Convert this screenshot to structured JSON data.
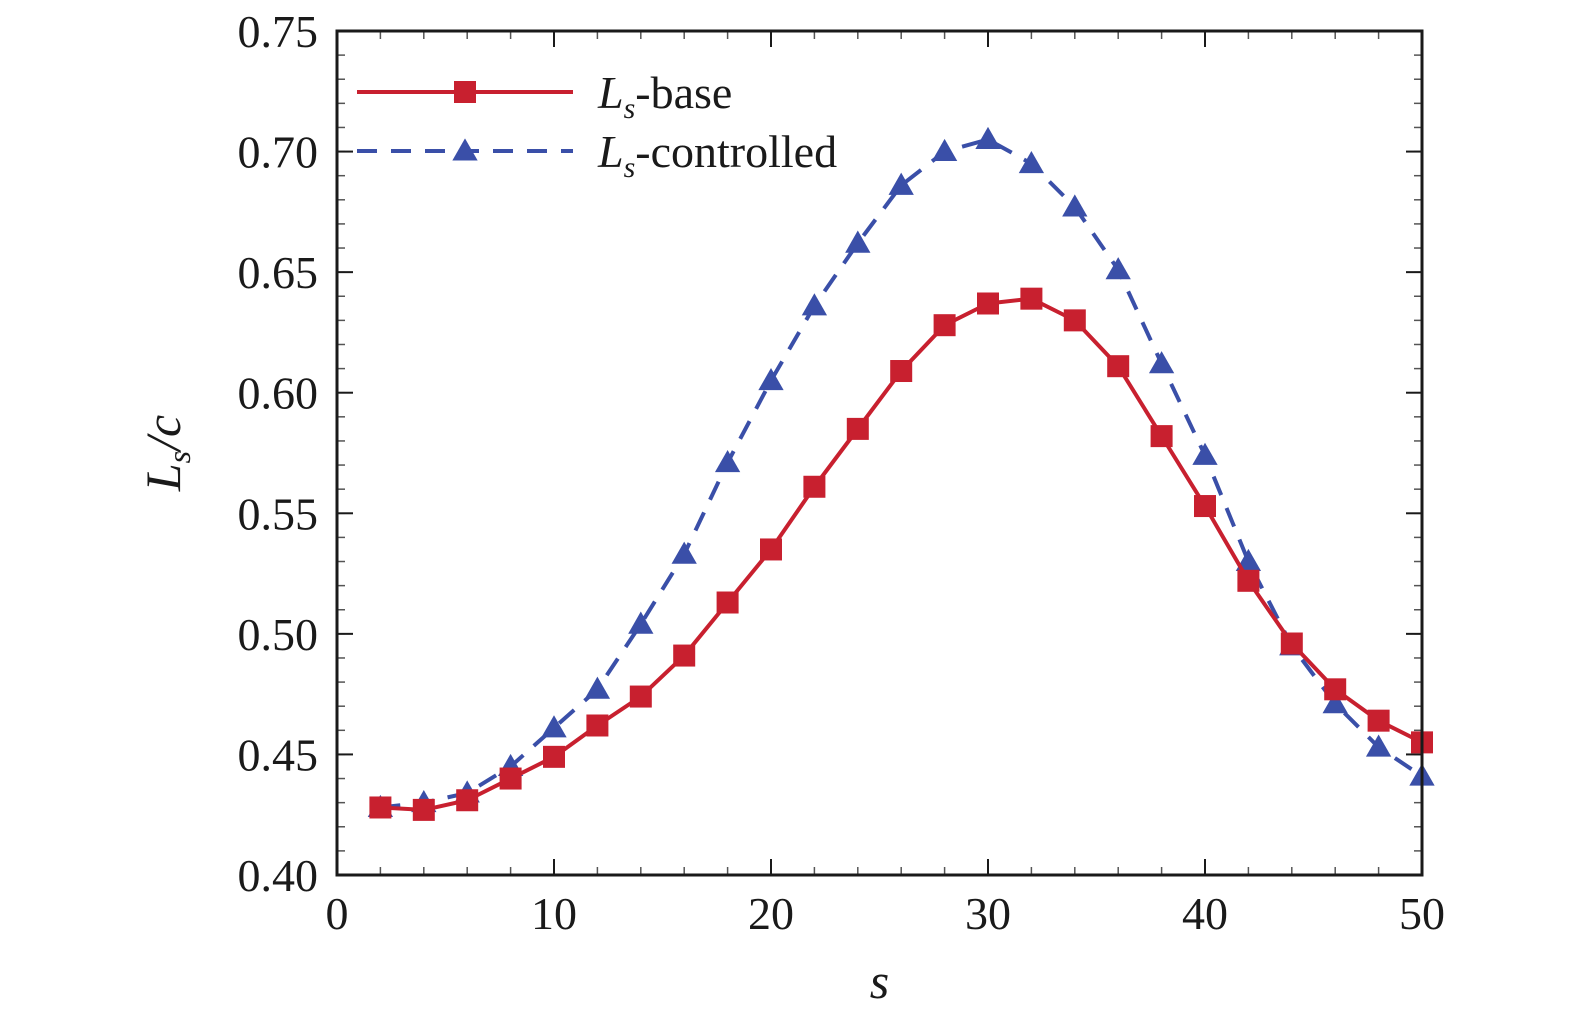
{
  "chart_data": {
    "type": "line",
    "title": "",
    "xlabel": "s",
    "ylabel": {
      "main": "L",
      "sub": "s",
      "rest": "/c"
    },
    "xlim": [
      0,
      50
    ],
    "ylim": [
      0.4,
      0.75
    ],
    "xticks": [
      0,
      10,
      20,
      30,
      40,
      50
    ],
    "xtick_labels": [
      "0",
      "10",
      "20",
      "30",
      "40",
      "50"
    ],
    "yticks": [
      0.4,
      0.45,
      0.5,
      0.55,
      0.6,
      0.65,
      0.7,
      0.75
    ],
    "ytick_labels": [
      "0.40",
      "0.45",
      "0.50",
      "0.55",
      "0.60",
      "0.65",
      "0.70",
      "0.75"
    ],
    "minor_xtick_step": 2,
    "minor_ytick_step": 0.01,
    "grid": false,
    "legend_position": "top-left",
    "x": [
      2,
      4,
      6,
      8,
      10,
      12,
      14,
      16,
      18,
      20,
      22,
      24,
      26,
      28,
      30,
      32,
      34,
      36,
      38,
      40,
      42,
      44,
      46,
      48,
      50
    ],
    "series": [
      {
        "name": "base",
        "legend": {
          "main": "L",
          "sub": "s",
          "rest": "-base"
        },
        "color": "#c8202f",
        "line_style": "solid",
        "marker": "square",
        "values": [
          0.428,
          0.427,
          0.431,
          0.44,
          0.449,
          0.462,
          0.474,
          0.491,
          0.513,
          0.535,
          0.561,
          0.585,
          0.609,
          0.628,
          0.637,
          0.639,
          0.63,
          0.611,
          0.582,
          0.553,
          0.522,
          0.496,
          0.477,
          0.464,
          0.455
        ]
      },
      {
        "name": "controlled",
        "legend": {
          "main": "L",
          "sub": "s",
          "rest": "-controlled"
        },
        "color": "#3a4fa8",
        "line_style": "dashed",
        "marker": "triangle",
        "values": [
          0.428,
          0.43,
          0.434,
          0.445,
          0.461,
          0.477,
          0.504,
          0.533,
          0.571,
          0.605,
          0.636,
          0.662,
          0.686,
          0.7,
          0.705,
          0.695,
          0.677,
          0.651,
          0.612,
          0.574,
          0.53,
          0.495,
          0.471,
          0.453,
          0.441
        ]
      }
    ]
  }
}
